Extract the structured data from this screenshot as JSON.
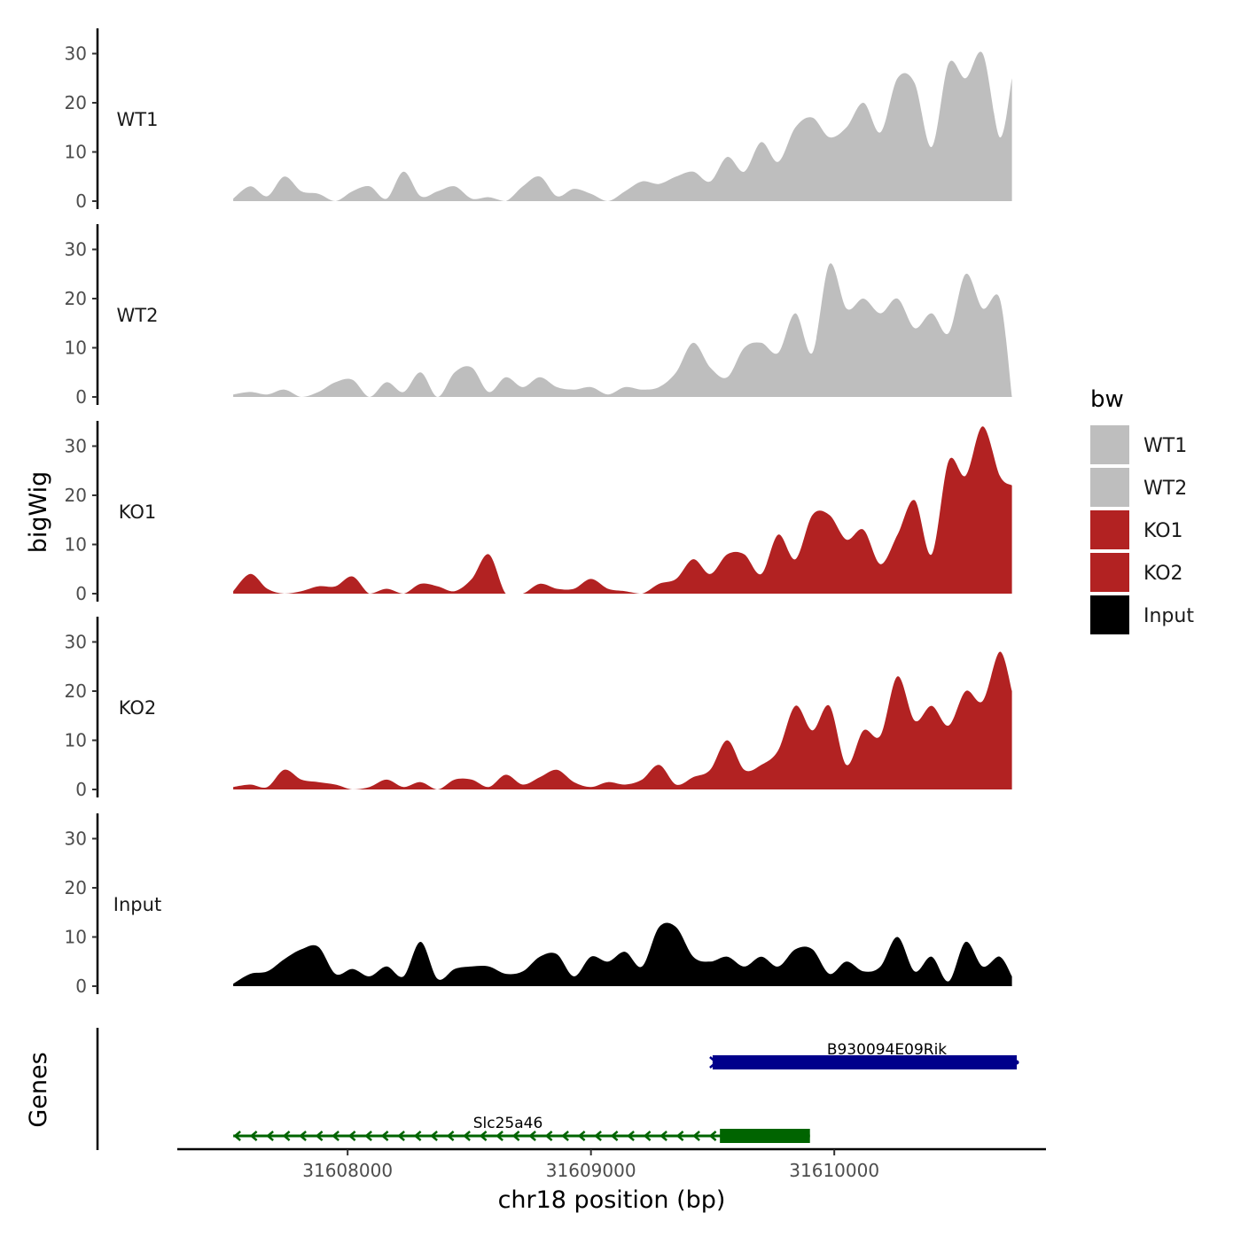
{
  "chart_data": {
    "type": "area",
    "title": "",
    "ylabel": "bigWig",
    "xlabel": "chr18 position (bp)",
    "genes_label": "Genes",
    "ylim": [
      0,
      35
    ],
    "yticks": [
      0,
      10,
      20,
      30
    ],
    "xlim": [
      31607300,
      31610870
    ],
    "xticks": [
      31608000,
      31609000,
      31610000
    ],
    "xtick_labels": [
      "31608000",
      "31609000",
      "31610000"
    ],
    "legend": {
      "title": "bw",
      "position": "right",
      "entries": [
        {
          "label": "WT1",
          "color": "#bebebe"
        },
        {
          "label": "WT2",
          "color": "#bebebe"
        },
        {
          "label": "KO1",
          "color": "#b22222"
        },
        {
          "label": "KO2",
          "color": "#b22222"
        },
        {
          "label": "Input",
          "color": "#000000"
        }
      ]
    },
    "track_x": [
      31607530,
      31607600,
      31607670,
      31607740,
      31607810,
      31607880,
      31607950,
      31608020,
      31608090,
      31608160,
      31608230,
      31608300,
      31608370,
      31608440,
      31608510,
      31608580,
      31608650,
      31608720,
      31608790,
      31608860,
      31608930,
      31609000,
      31609070,
      31609140,
      31609210,
      31609280,
      31609350,
      31609420,
      31609490,
      31609560,
      31609630,
      31609700,
      31609770,
      31609840,
      31609910,
      31609980,
      31610050,
      31610120,
      31610190,
      31610260,
      31610330,
      31610400,
      31610470,
      31610540,
      31610610,
      31610680,
      31610730
    ],
    "series": [
      {
        "name": "WT1",
        "color": "#bebebe",
        "values": [
          0.5,
          3,
          1,
          5,
          2,
          1.5,
          0,
          2,
          3,
          0.5,
          6,
          1,
          2,
          3,
          0.5,
          0.8,
          0,
          3,
          5,
          1,
          2.5,
          1.5,
          0,
          2,
          4,
          3.5,
          5,
          6,
          4,
          9,
          6,
          12,
          8,
          15,
          17,
          13,
          15,
          20,
          14,
          25,
          24,
          11,
          28,
          25,
          30,
          13,
          25
        ]
      },
      {
        "name": "WT2",
        "color": "#bebebe",
        "values": [
          0.5,
          1,
          0.5,
          1.5,
          0,
          1,
          3,
          3.5,
          0,
          3,
          1,
          5,
          0,
          5,
          6,
          1,
          4,
          2,
          4,
          2,
          1.5,
          2,
          0.5,
          2,
          1.5,
          2,
          5,
          11,
          6,
          4,
          10,
          11,
          9,
          17,
          9,
          27,
          18,
          20,
          17,
          20,
          14,
          17,
          13,
          25,
          18,
          20,
          0
        ]
      },
      {
        "name": "KO1",
        "color": "#b22222",
        "values": [
          0.5,
          4,
          1,
          0,
          0.5,
          1.5,
          1.5,
          3.5,
          0,
          1,
          0,
          2,
          1.5,
          0.5,
          3,
          8,
          0,
          0,
          2,
          1,
          1,
          3,
          1,
          0.5,
          0,
          2,
          3,
          7,
          4,
          8,
          8,
          4,
          12,
          7,
          16,
          16,
          11,
          13,
          6,
          12,
          19,
          8,
          27,
          24,
          34,
          24,
          22
        ]
      },
      {
        "name": "KO2",
        "color": "#b22222",
        "values": [
          0.5,
          1,
          0.5,
          4,
          2,
          1.5,
          1,
          0,
          0.5,
          2,
          0.5,
          1.5,
          0,
          2,
          2,
          0.5,
          3,
          1,
          2.5,
          4,
          1.5,
          0.5,
          1.5,
          1,
          2,
          5,
          1,
          2.5,
          4,
          10,
          4,
          5,
          8,
          17,
          12,
          17,
          5,
          12,
          11,
          23,
          14,
          17,
          13,
          20,
          18,
          28,
          20
        ]
      },
      {
        "name": "Input",
        "color": "#000000",
        "values": [
          0.5,
          2.5,
          3,
          5.5,
          7.5,
          8,
          2.5,
          3.5,
          2,
          4,
          2,
          9,
          1.5,
          3.5,
          4,
          4,
          2.5,
          3,
          6,
          6.5,
          2,
          6,
          5,
          7,
          4,
          12,
          12,
          6,
          5,
          6,
          4,
          6,
          4,
          7.5,
          7.5,
          2.5,
          5,
          3,
          4,
          10,
          3,
          6,
          1,
          9,
          4,
          6,
          2
        ]
      }
    ],
    "genes": [
      {
        "name": "B930094E09Rik",
        "strand": "+",
        "color": "#00008b",
        "start": 31609500,
        "end": 31610750,
        "thick_start": 31609500,
        "thick_end": 31610750,
        "row": 1
      },
      {
        "name": "Slc25a46",
        "strand": "-",
        "color": "#006400",
        "start": 31607530,
        "end": 31609900,
        "thick_start": 31609530,
        "thick_end": 31609900,
        "row": 2
      }
    ]
  }
}
